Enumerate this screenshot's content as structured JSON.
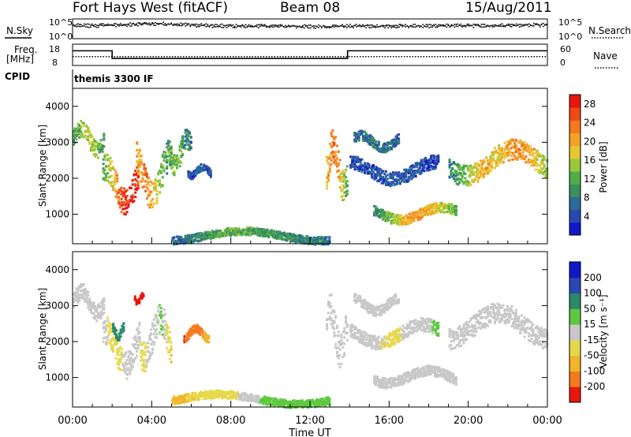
{
  "header": {
    "station": "Fort Hays West (fitACF)",
    "beam": "Beam 08",
    "date": "15/Aug/2011"
  },
  "colors": {
    "frame": "#000000",
    "background": "#ffffff",
    "ground_scatter": "#c8c8c8"
  },
  "chart_data": [
    {
      "type": "line",
      "name": "noise-panel",
      "left_label": "N.Sky",
      "right_label": "N.Search",
      "left_ticks": [
        "10^5",
        "10^0"
      ],
      "right_ticks": [
        "10^5",
        "10^0"
      ],
      "ylim_log10": [
        0,
        5
      ],
      "x_range_hours": [
        0,
        24
      ],
      "series": [
        {
          "legend": "N.Sky",
          "style": "solid",
          "level_log10": [
            3.6,
            3.7,
            3.7,
            3.9,
            4.1,
            4.0,
            3.8,
            3.6,
            3.5,
            3.5,
            3.5,
            3.4,
            3.4,
            3.4,
            3.5,
            3.5,
            3.5,
            3.5,
            3.5,
            3.6,
            3.6,
            3.6,
            3.7,
            3.7,
            3.8
          ]
        },
        {
          "legend": "N.Search",
          "style": "dotted",
          "level_log10": [
            3.2,
            3.3,
            3.4,
            3.6,
            3.8,
            3.8,
            3.5,
            3.3,
            3.2,
            3.2,
            3.2,
            3.1,
            3.1,
            3.1,
            3.2,
            3.2,
            3.2,
            3.2,
            3.2,
            3.3,
            3.3,
            3.3,
            3.4,
            3.4,
            3.5
          ]
        }
      ]
    },
    {
      "type": "line",
      "name": "frequency-panel",
      "left_label": "Freq.",
      "left_unit": "[MHz]",
      "left_ticks": [
        "18",
        "8"
      ],
      "right_label": "Nave",
      "right_ticks": [
        "60",
        "0"
      ],
      "freq_lim": [
        8,
        18
      ],
      "nave_lim": [
        0,
        60
      ],
      "freq_steps": [
        {
          "start": 0,
          "end": 2.0,
          "mhz": 14.9
        },
        {
          "start": 2.0,
          "end": 13.9,
          "mhz": 11.3
        },
        {
          "start": 13.9,
          "end": 24,
          "mhz": 14.9
        }
      ],
      "nave_level": 25
    },
    {
      "type": "table",
      "name": "cpid-panel",
      "label": "CPID",
      "program": "themis 3300 IF"
    },
    {
      "type": "heatmap",
      "name": "power-rti",
      "ylabel": "Slant Range [km]",
      "yticks": [
        1000,
        2000,
        3000,
        4000
      ],
      "ylim": [
        180,
        4500
      ],
      "x_range_hours": [
        0,
        24
      ],
      "colorbar_label": "Power [dB]",
      "colorbar_ticks": [
        4,
        8,
        12,
        16,
        20,
        24,
        28
      ],
      "colorbar_range": [
        0,
        30
      ],
      "colorbar_colors": [
        "#1018c8",
        "#2a48b0",
        "#2a6b9a",
        "#3b8f5a",
        "#4fae4a",
        "#99c83a",
        "#e6c830",
        "#f2a325",
        "#f47a1e",
        "#ef4a16",
        "#e6170c"
      ],
      "echo_regions": [
        {
          "t": [
            0.0,
            1.6
          ],
          "r": [
            2700,
            3550
          ],
          "v": [
            10,
            14,
            16,
            14,
            10
          ]
        },
        {
          "t": [
            1.5,
            3.4
          ],
          "r": [
            1150,
            2550
          ],
          "v": [
            12,
            18,
            26,
            30,
            24
          ]
        },
        {
          "t": [
            3.2,
            5.0
          ],
          "r": [
            1350,
            2900
          ],
          "v": [
            20,
            24,
            18,
            12,
            8
          ]
        },
        {
          "t": [
            4.8,
            6.0
          ],
          "r": [
            2200,
            3300
          ],
          "v": [
            12,
            14,
            10,
            8
          ]
        },
        {
          "t": [
            5.8,
            7.0
          ],
          "r": [
            2050,
            2400
          ],
          "v": [
            4,
            6,
            5
          ]
        },
        {
          "t": [
            5.0,
            13.0
          ],
          "r": [
            230,
            620
          ],
          "v": [
            6,
            12,
            10,
            8
          ]
        },
        {
          "t": [
            12.8,
            13.9
          ],
          "r": [
            1500,
            3200
          ],
          "v": [
            20,
            24,
            18,
            10
          ]
        },
        {
          "t": [
            14.2,
            16.5
          ],
          "r": [
            2800,
            3300
          ],
          "v": [
            6,
            8,
            6
          ]
        },
        {
          "t": [
            14.0,
            18.5
          ],
          "r": [
            1900,
            2600
          ],
          "v": [
            4,
            5,
            4
          ]
        },
        {
          "t": [
            15.2,
            19.4
          ],
          "r": [
            800,
            1300
          ],
          "v": [
            8,
            16,
            22,
            18,
            12
          ]
        },
        {
          "t": [
            19.0,
            24.0
          ],
          "r": [
            1950,
            3000
          ],
          "v": [
            8,
            14,
            20,
            18,
            22,
            20,
            14
          ]
        }
      ]
    },
    {
      "type": "heatmap",
      "name": "velocity-rti",
      "ylabel": "Slant Range [km]",
      "yticks": [
        1000,
        2000,
        3000,
        4000
      ],
      "ylim": [
        180,
        4500
      ],
      "x_range_hours": [
        0,
        24
      ],
      "xticks": [
        "00:00",
        "04:00",
        "08:00",
        "12:00",
        "16:00",
        "20:00",
        "00:00"
      ],
      "xlabel": "Time UT",
      "colorbar_label": "Velocity [m s⁻¹]",
      "colorbar_ticks": [
        -200,
        -100,
        -50,
        -15,
        15,
        50,
        100,
        200
      ],
      "colorbar_colors": [
        "#e6170c",
        "#f47a1e",
        "#f2b52a",
        "#e6d84a",
        "#c8c8c8",
        "#5ec840",
        "#2a8a6a",
        "#2a48b0",
        "#1018c8"
      ],
      "echo_regions": [
        {
          "t": [
            0.0,
            1.6
          ],
          "r": [
            2700,
            3550
          ],
          "v": [
            0,
            5,
            -10,
            0
          ]
        },
        {
          "t": [
            1.5,
            3.4
          ],
          "r": [
            1150,
            2550
          ],
          "v": [
            0,
            -40,
            10,
            0
          ]
        },
        {
          "t": [
            2.0,
            2.6
          ],
          "r": [
            2100,
            2500
          ],
          "v": [
            60,
            80
          ]
        },
        {
          "t": [
            3.1,
            3.6
          ],
          "r": [
            3050,
            3350
          ],
          "v": [
            -220,
            -200
          ]
        },
        {
          "t": [
            3.4,
            5.0
          ],
          "r": [
            1350,
            2900
          ],
          "v": [
            -30,
            0,
            20,
            -60
          ]
        },
        {
          "t": [
            5.6,
            6.9
          ],
          "r": [
            2050,
            2450
          ],
          "v": [
            -200,
            -120,
            -80
          ]
        },
        {
          "t": [
            5.0,
            13.0
          ],
          "r": [
            230,
            620
          ],
          "v": [
            -60,
            -30,
            40,
            20
          ]
        },
        {
          "t": [
            12.8,
            13.9
          ],
          "r": [
            1500,
            3200
          ],
          "v": [
            0,
            -10,
            10
          ]
        },
        {
          "t": [
            14.2,
            16.5
          ],
          "r": [
            2800,
            3300
          ],
          "v": [
            0,
            5
          ]
        },
        {
          "t": [
            14.0,
            18.5
          ],
          "r": [
            1900,
            2600
          ],
          "v": [
            0,
            -20,
            20
          ]
        },
        {
          "t": [
            15.2,
            19.4
          ],
          "r": [
            800,
            1300
          ],
          "v": [
            0,
            0,
            5
          ]
        },
        {
          "t": [
            19.0,
            24.0
          ],
          "r": [
            1950,
            3000
          ],
          "v": [
            0,
            -10,
            0,
            10
          ]
        }
      ]
    }
  ]
}
